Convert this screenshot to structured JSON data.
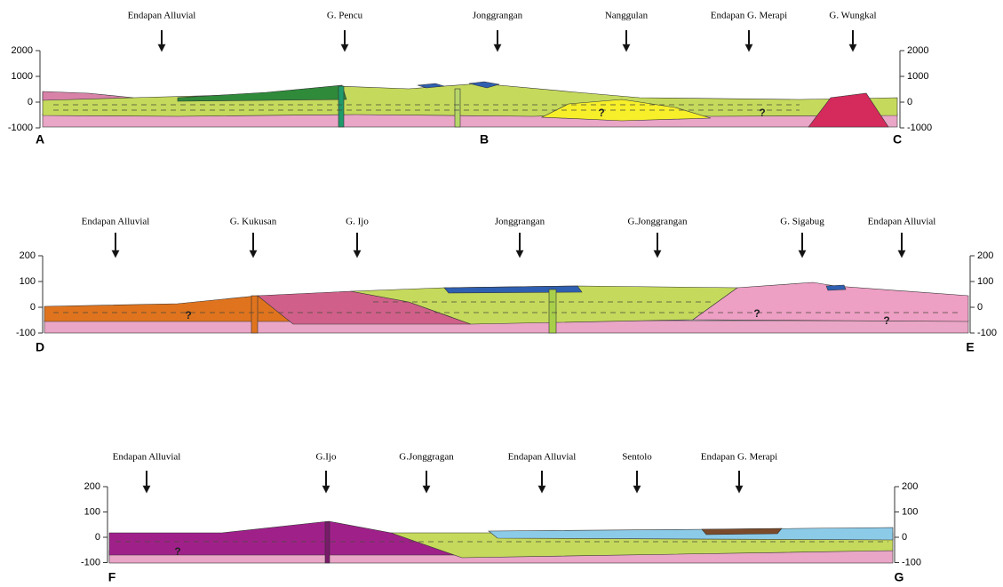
{
  "sections": [
    {
      "labels": [
        "Endapan Alluvial",
        "G. Pencu",
        "Jonggrangan",
        "Nanggulan",
        "Endapan G. Merapi",
        "G. Wungkal"
      ],
      "ticks": [
        2000,
        1000,
        0,
        -1000
      ],
      "points": [
        "A",
        "B",
        "C"
      ],
      "question_marks": [
        "?",
        "?"
      ]
    },
    {
      "labels": [
        "Endapan Alluvial",
        "G. Kukusan",
        "G. Ijo",
        "Jonggrangan",
        "G.Jonggrangan",
        "G. Sigabug",
        "Endapan Alluvial"
      ],
      "ticks": [
        200,
        100,
        0,
        -100
      ],
      "points": [
        "D",
        "E"
      ],
      "question_marks": [
        "?",
        "?",
        "?"
      ]
    },
    {
      "labels": [
        "Endapan Alluvial",
        "G.Ijo",
        "G.Jonggragan",
        "Endapan Alluvial",
        "Sentolo",
        "Endapan G. Merapi"
      ],
      "ticks": [
        200,
        100,
        0,
        -100
      ],
      "points": [
        "F",
        "G"
      ],
      "question_marks": [
        "?"
      ]
    }
  ]
}
